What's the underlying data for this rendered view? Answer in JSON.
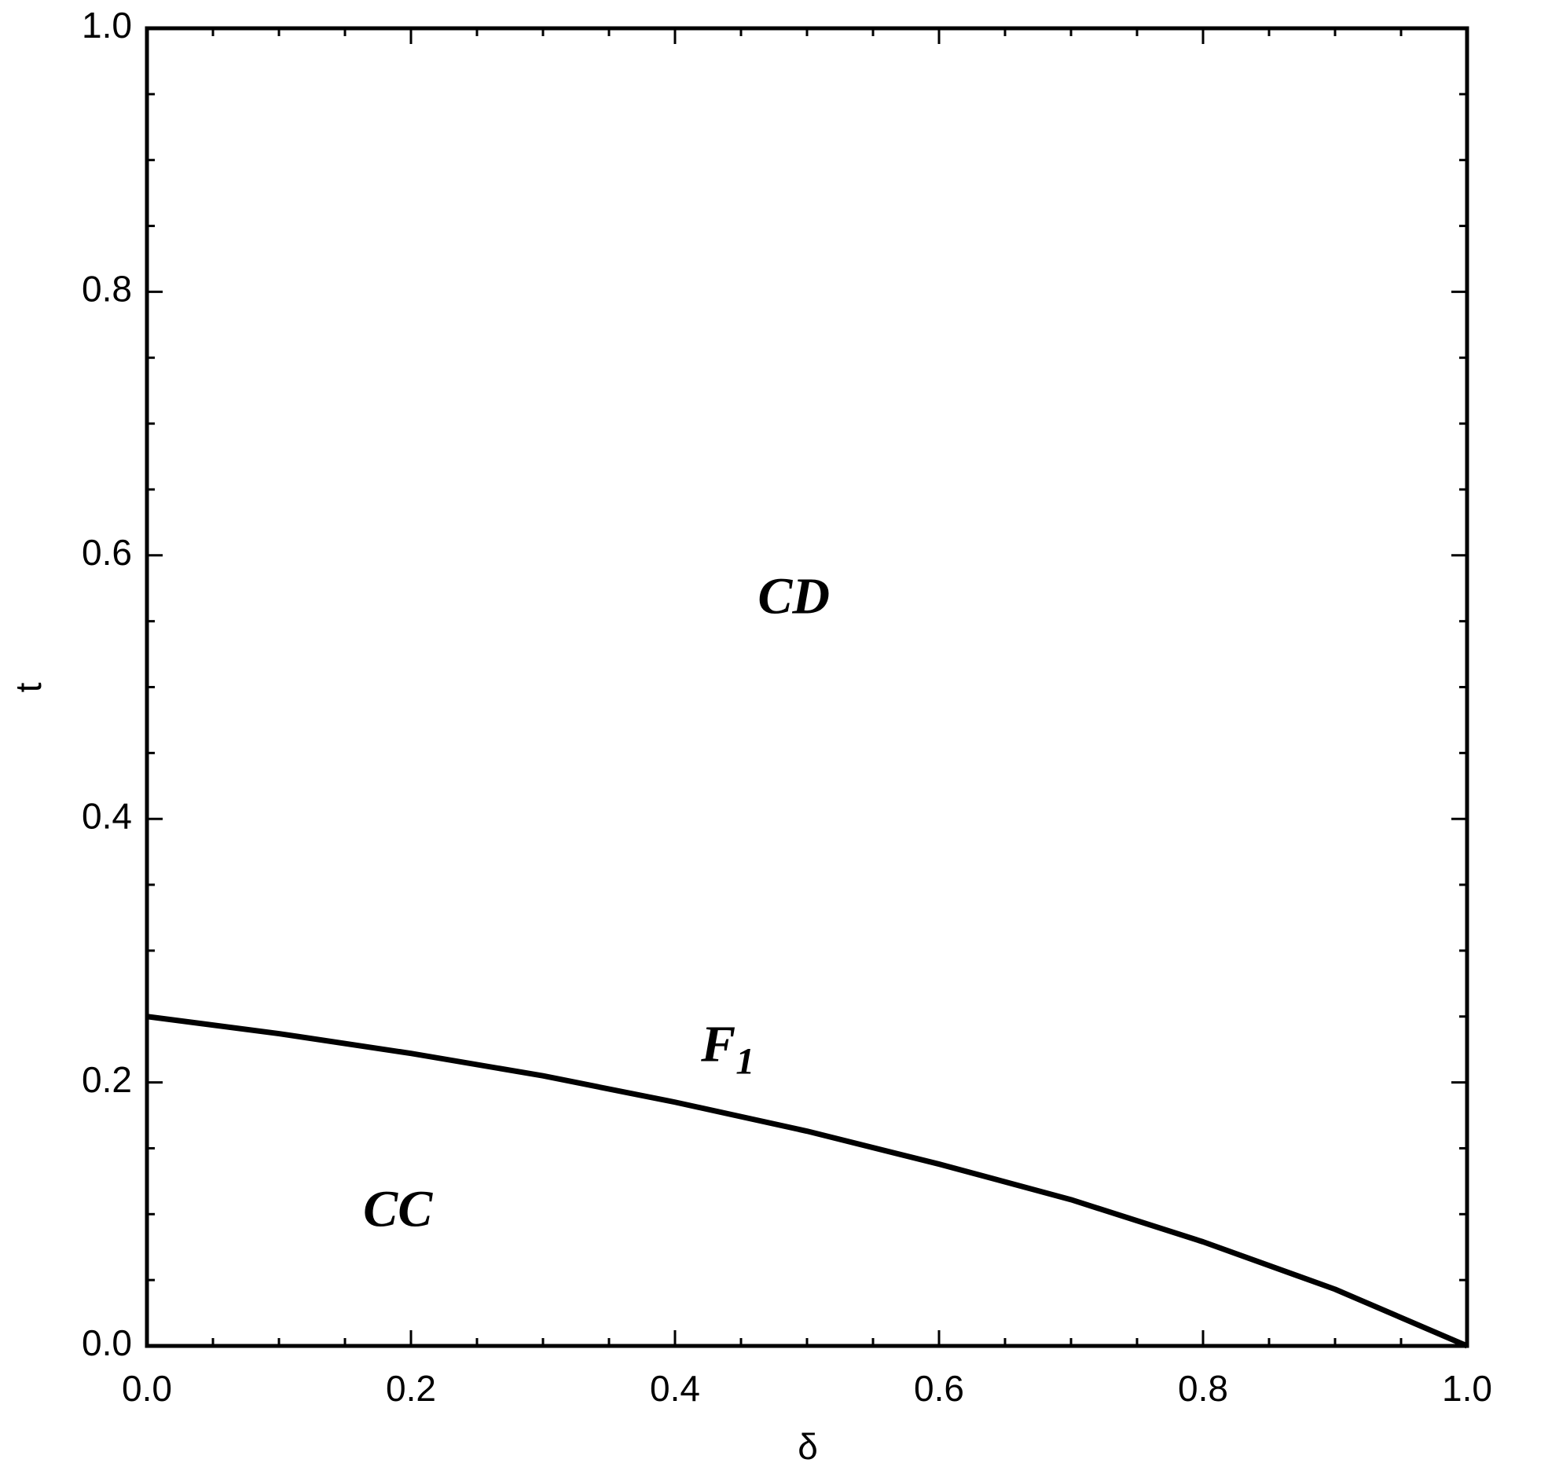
{
  "chart_data": {
    "type": "line",
    "x_label": "δ",
    "y_label": "t",
    "x": [
      0,
      0.1,
      0.2,
      0.3,
      0.4,
      0.5,
      0.6,
      0.7,
      0.8,
      0.9,
      1.0
    ],
    "series": [
      {
        "color": "#000000",
        "values": [
          0.25,
          0.237,
          0.222,
          0.205,
          0.185,
          0.163,
          0.138,
          0.111,
          0.079,
          0.043,
          0
        ]
      }
    ],
    "xlim": [
      0,
      1
    ],
    "ylim": [
      0,
      1
    ],
    "xticks": [
      {
        "value": 0,
        "label": "0.0"
      },
      0.2,
      0.4,
      0.6,
      0.8,
      {
        "value": 1,
        "label": "1.0"
      }
    ],
    "yticks": [
      {
        "value": 0,
        "label": "0.0"
      },
      0.2,
      0.4,
      0.6,
      0.8,
      {
        "value": 1,
        "label": "1.0"
      }
    ],
    "xminorticks": [
      0.05,
      0.1,
      0.15,
      0.25,
      0.3,
      0.35,
      0.45,
      0.5,
      0.55,
      0.65,
      0.7,
      0.75,
      0.85,
      0.9,
      0.95
    ],
    "yminorticks": [
      0.05,
      0.1,
      0.15,
      0.25,
      0.3,
      0.35,
      0.45,
      0.5,
      0.55,
      0.65,
      0.7,
      0.75,
      0.85,
      0.9,
      0.95
    ],
    "annotations": [
      {
        "text": "CD",
        "x": 0.49,
        "y": 0.565
      },
      {
        "text": "F",
        "sub": "1",
        "x": 0.44,
        "y": 0.225
      },
      {
        "text": "CC",
        "x": 0.19,
        "y": 0.1
      }
    ]
  }
}
